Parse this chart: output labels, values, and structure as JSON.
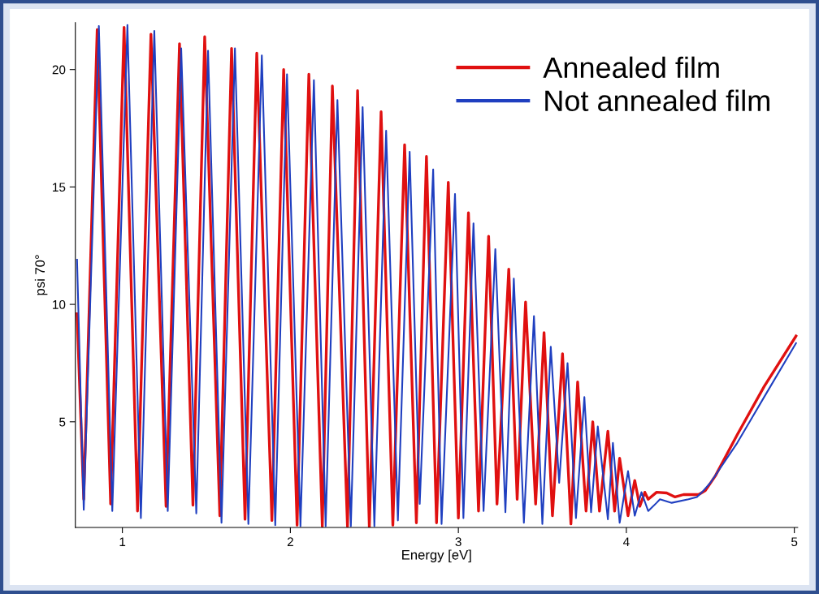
{
  "chart_data": {
    "type": "line",
    "xlabel": "Energy [eV]",
    "ylabel": "psi 70°",
    "xlim": [
      0.72,
      5.02
    ],
    "xticks": [
      1,
      2,
      3,
      4,
      5
    ],
    "ylim": [
      0.5,
      22
    ],
    "yticks": [
      5,
      10,
      15,
      20
    ],
    "grid": false,
    "legend": "top right",
    "marker": "none",
    "line_style": "solid",
    "series": [
      {
        "name": "Annealed film",
        "color": "#e01010",
        "x": [
          0.73,
          0.77,
          0.85,
          0.93,
          1.01,
          1.09,
          1.17,
          1.26,
          1.34,
          1.42,
          1.49,
          1.58,
          1.65,
          1.73,
          1.8,
          1.89,
          1.96,
          2.04,
          2.11,
          2.19,
          2.25,
          2.34,
          2.4,
          2.47,
          2.54,
          2.61,
          2.68,
          2.75,
          2.81,
          2.87,
          2.94,
          3.0,
          3.06,
          3.12,
          3.18,
          3.23,
          3.3,
          3.35,
          3.4,
          3.46,
          3.51,
          3.56,
          3.62,
          3.67,
          3.71,
          3.76,
          3.8,
          3.84,
          3.89,
          3.93,
          3.96,
          4.01,
          4.05,
          4.08,
          4.11,
          4.13,
          4.18,
          4.24,
          4.29,
          4.34,
          4.43,
          4.47,
          4.53,
          4.66,
          4.82,
          5.01
        ],
        "values": [
          9.6,
          1.7,
          21.7,
          1.5,
          21.8,
          1.2,
          21.5,
          1.4,
          21.1,
          1.45,
          21.4,
          1.0,
          20.9,
          0.85,
          20.7,
          0.8,
          20.0,
          0.6,
          19.8,
          0.55,
          19.3,
          0.55,
          19.1,
          0.5,
          18.2,
          0.6,
          16.8,
          0.7,
          16.3,
          0.7,
          15.2,
          0.9,
          13.9,
          1.2,
          12.9,
          1.5,
          11.5,
          1.7,
          10.1,
          1.5,
          8.8,
          1.0,
          7.9,
          0.65,
          6.7,
          1.2,
          5.0,
          1.2,
          4.6,
          1.2,
          3.45,
          1.0,
          2.5,
          1.4,
          2.0,
          1.7,
          2.0,
          1.97,
          1.8,
          1.9,
          1.9,
          2.07,
          2.7,
          4.45,
          6.5,
          8.65
        ]
      },
      {
        "name": "Not annealed film",
        "color": "#1f3fc0",
        "x": [
          0.73,
          0.77,
          0.86,
          0.94,
          1.03,
          1.11,
          1.19,
          1.27,
          1.35,
          1.44,
          1.51,
          1.59,
          1.67,
          1.75,
          1.83,
          1.91,
          1.98,
          2.06,
          2.14,
          2.21,
          2.28,
          2.36,
          2.43,
          2.5,
          2.57,
          2.64,
          2.71,
          2.77,
          2.85,
          2.9,
          2.98,
          3.03,
          3.09,
          3.15,
          3.22,
          3.28,
          3.33,
          3.39,
          3.45,
          3.5,
          3.55,
          3.6,
          3.65,
          3.7,
          3.75,
          3.79,
          3.83,
          3.89,
          3.92,
          3.96,
          4.01,
          4.05,
          4.09,
          4.13,
          4.18,
          4.2,
          4.27,
          4.37,
          4.42,
          4.45,
          4.5,
          4.66,
          4.82,
          5.01
        ],
        "values": [
          11.9,
          1.25,
          21.85,
          1.2,
          21.9,
          0.9,
          21.65,
          1.2,
          20.9,
          1.1,
          20.8,
          0.7,
          20.9,
          0.65,
          20.6,
          0.6,
          19.8,
          0.55,
          19.55,
          0.55,
          18.7,
          0.55,
          18.4,
          0.55,
          17.4,
          0.8,
          16.5,
          1.5,
          15.75,
          0.65,
          14.7,
          0.9,
          13.45,
          1.2,
          12.35,
          1.15,
          11.1,
          0.7,
          9.5,
          0.65,
          8.2,
          2.4,
          7.5,
          0.9,
          6.05,
          1.15,
          4.8,
          0.85,
          4.1,
          0.7,
          2.9,
          1.0,
          2.0,
          1.2,
          1.55,
          1.7,
          1.55,
          1.7,
          1.8,
          2.0,
          2.4,
          4.1,
          6.05,
          8.35
        ]
      }
    ]
  }
}
